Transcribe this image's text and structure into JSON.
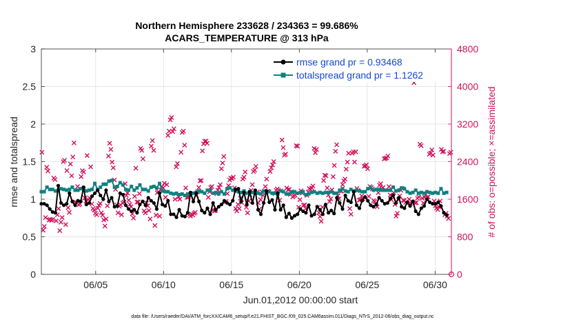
{
  "chart_data": {
    "type": "line",
    "title_line1": "Northern Hemisphere 233628 / 234363 = 99.686%",
    "title_line2": "ACARS_TEMPERATURE @ 313 hPa",
    "xlabel": "Jun.01,2012 00:00:00 start",
    "ylabel_left": "rmse and totalspread",
    "ylabel_right": "# of obs: o=possible; ×=assimilated",
    "xlim_days": [
      1,
      31.2
    ],
    "ylim_left": [
      0,
      3
    ],
    "ylim_right": [
      0,
      4800
    ],
    "x_ticks": [
      {
        "day": 5,
        "label": "06/05"
      },
      {
        "day": 10,
        "label": "06/10"
      },
      {
        "day": 15,
        "label": "06/15"
      },
      {
        "day": 20,
        "label": "06/20"
      },
      {
        "day": 25,
        "label": "06/25"
      },
      {
        "day": 30,
        "label": "06/30"
      }
    ],
    "y_ticks_left": [
      {
        "v": 0,
        "label": "0"
      },
      {
        "v": 0.5,
        "label": "0.5"
      },
      {
        "v": 1,
        "label": "1"
      },
      {
        "v": 1.5,
        "label": "1.5"
      },
      {
        "v": 2,
        "label": "2"
      },
      {
        "v": 2.5,
        "label": "2.5"
      },
      {
        "v": 3,
        "label": "3"
      }
    ],
    "y_ticks_right": [
      {
        "v": 0,
        "label": "0"
      },
      {
        "v": 800,
        "label": "800"
      },
      {
        "v": 1600,
        "label": "1600"
      },
      {
        "v": 2400,
        "label": "2400"
      },
      {
        "v": 3200,
        "label": "3200"
      },
      {
        "v": 4000,
        "label": "4000"
      },
      {
        "v": 4800,
        "label": "4800"
      }
    ],
    "legend_position": "top-right",
    "series": [
      {
        "name": "rmse",
        "legend": "rmse grand pr = 0.93468",
        "color": "#000000",
        "marker": "circle"
      },
      {
        "name": "totalspread",
        "legend": "totalspread grand pr = 1.1262",
        "color": "#108080",
        "marker": "square"
      },
      {
        "name": "obs_assimilated",
        "legend": "",
        "color": "#d0105a",
        "marker": "x"
      }
    ],
    "rmse_values": [
      0.94,
      0.94,
      0.92,
      0.87,
      0.83,
      0.82,
      1.18,
      0.95,
      0.92,
      0.94,
      1.08,
      0.97,
      0.92,
      0.98,
      0.97,
      1.16,
      0.93,
      0.95,
      1.04,
      1.08,
      1.12,
      1.05,
      1.0,
      1.12,
      0.97,
      1.02,
      0.9,
      0.91,
      1.08,
      1.06,
      0.92,
      0.87,
      0.84,
      0.86,
      0.82,
      0.93,
      0.97,
      0.92,
      1.02,
      0.98,
      0.95,
      0.87,
      1.08,
      0.93,
      0.91,
      0.98,
      0.8,
      0.8,
      0.76,
      0.86,
      0.78,
      0.77,
      0.82,
      1.09,
      0.97,
      1.08,
      0.97,
      0.85,
      0.82,
      0.88,
      0.8,
      0.95,
      0.86,
      0.9,
      0.93,
      0.98,
      0.95,
      0.93,
      0.98,
      1.13,
      1.14,
      0.97,
      1.09,
      0.93,
      1.1,
      0.95,
      1.12,
      0.86,
      0.8,
      0.95,
      1.11,
      0.96,
      0.99,
      0.86,
      1.08,
      0.86,
      0.92,
      0.76,
      0.81,
      0.75,
      0.78,
      0.8,
      0.87,
      0.84,
      0.82,
      0.92,
      0.78,
      0.8,
      0.9,
      0.86,
      0.8,
      0.93,
      0.82,
      0.85,
      0.81,
      1.02,
      0.95,
      0.87,
      1.05,
      0.98,
      0.96,
      1.1,
      0.92,
      0.88,
      0.98,
      1.03,
      0.98,
      0.92,
      0.9,
      0.93,
      1.02,
      0.98,
      0.94,
      0.95,
      1.01,
      1.05,
      0.95,
      1.02,
      0.9,
      0.88,
      0.96,
      0.91,
      0.97,
      0.84,
      0.8,
      0.88,
      0.91,
      1.0,
      0.96,
      0.94,
      0.94,
      0.96,
      0.91,
      0.82,
      0.79
    ],
    "spread_values": [
      1.1,
      1.1,
      1.16,
      1.13,
      1.13,
      1.11,
      1.12,
      1.14,
      1.13,
      1.12,
      1.13,
      1.16,
      1.12,
      1.12,
      1.14,
      1.15,
      1.11,
      1.12,
      1.13,
      1.21,
      1.13,
      1.16,
      1.2,
      1.2,
      1.24,
      1.25,
      1.16,
      1.17,
      1.22,
      1.19,
      1.13,
      1.12,
      1.17,
      1.12,
      1.15,
      1.19,
      1.13,
      1.13,
      1.11,
      1.16,
      1.17,
      1.15,
      1.21,
      1.11,
      1.1,
      1.1,
      1.08,
      1.07,
      1.08,
      1.06,
      1.07,
      1.05,
      1.07,
      1.06,
      1.08,
      1.09,
      1.11,
      1.1,
      1.08,
      1.12,
      1.12,
      1.08,
      1.09,
      1.07,
      1.1,
      1.07,
      1.14,
      1.15,
      1.12,
      1.11,
      1.1,
      1.09,
      1.11,
      1.08,
      1.1,
      1.09,
      1.1,
      1.08,
      1.07,
      1.11,
      1.09,
      1.1,
      1.08,
      1.08,
      1.07,
      1.11,
      1.1,
      1.07,
      1.07,
      1.1,
      1.1,
      1.08,
      1.09,
      1.1,
      1.06,
      1.07,
      1.09,
      1.1,
      1.08,
      1.09,
      1.08,
      1.09,
      1.09,
      1.1,
      1.08,
      1.08,
      1.12,
      1.14,
      1.11,
      1.1,
      1.13,
      1.11,
      1.12,
      1.11,
      1.1,
      1.1,
      1.14,
      1.15,
      1.12,
      1.13,
      1.13,
      1.12,
      1.12,
      1.12,
      1.12,
      1.16,
      1.11,
      1.12,
      1.15,
      1.14,
      1.1,
      1.08,
      1.09,
      1.12,
      1.08,
      1.09,
      1.08,
      1.1,
      1.09,
      1.08,
      1.09,
      1.08,
      1.14,
      1.08,
      1.09
    ],
    "obs_assimilated": [
      2600,
      940,
      1020,
      1210,
      2280,
      2200,
      1160,
      1170,
      1150,
      1170,
      2050,
      2020,
      1140,
      1270,
      1400,
      930,
      1110,
      1210,
      2400,
      2430,
      1060,
      2210,
      1420,
      1320,
      2350,
      2100,
      2500,
      2800,
      1540,
      1530,
      1870,
      1480,
      1500,
      2080,
      2210,
      2180,
      1630,
      1560,
      2530,
      1590,
      1630,
      2290,
      1500,
      1400,
      1370,
      1300,
      1270,
      1410,
      1470,
      1510,
      1310,
      1260,
      1160,
      1030,
      1180,
      1460,
      2520,
      2790,
      2660,
      2390,
      2270,
      2010,
      1810,
      1480,
      1310,
      1450,
      1480,
      1270,
      1520,
      1540,
      1930,
      1680,
      1730,
      1580,
      1490,
      1440,
      1290,
      1200,
      1660,
      2260,
      1540,
      1540,
      1720,
      2680,
      2640,
      2460,
      1350,
      1310,
      1520,
      1460,
      1360,
      1180,
      2730,
      2850,
      2640,
      1040,
      1260,
      1740,
      1760,
      1240,
      1800,
      1870,
      1840,
      1940,
      1640,
      1910,
      2960,
      3050,
      3290,
      3340,
      3040,
      3100,
      1600,
      2290,
      2360,
      1650,
      1600,
      2600,
      3020,
      3050,
      2750,
      1840,
      1640,
      1640,
      1270,
      1240,
      1280,
      1260,
      1300,
      1320,
      1680,
      1760,
      1850,
      1990,
      2000,
      2630,
      2780,
      2830,
      2840,
      2790,
      1640,
      1760,
      1850,
      1870,
      1370,
      1350,
      1360,
      1720,
      1790,
      1850,
      1910,
      2250,
      2370,
      2510,
      1540,
      1550,
      1720,
      1890,
      2010,
      2050,
      2040,
      2070,
      1840,
      1400,
      1350,
      1490,
      1400,
      1620,
      1530,
      2030,
      2070,
      2180,
      1430,
      1310,
      1560,
      1700,
      1790,
      1910,
      2190,
      2220,
      2300,
      1750,
      1520,
      1390,
      1590,
      1760,
      1680,
      1770,
      1870,
      2030,
      1770,
      1760,
      2190,
      2270,
      2330,
      2400,
      1720,
      1790,
      1820,
      1790,
      1580,
      1780,
      2860,
      2700,
      2540,
      2560,
      1840,
      1800,
      1810,
      1700,
      1760,
      1650,
      1670,
      1690,
      2740,
      2730,
      1430,
      1590,
      1780,
      1730,
      1470,
      1480,
      1400,
      1680,
      1750,
      1830,
      1810,
      1840,
      1880,
      2680,
      2590,
      2660,
      1420,
      1310,
      1230,
      1130,
      1430,
      2000,
      2110,
      2100,
      1840,
      1690,
      1550,
      1610,
      1800,
      2080,
      2320,
      2620,
      2760,
      1670,
      1610,
      1780,
      1770,
      1910,
      1990,
      2030,
      2240,
      2390,
      2580,
      1400,
      1280,
      2580,
      2610,
      2390,
      2610,
      1830,
      1790,
      1580,
      1590,
      1670,
      1610,
      2300,
      2310,
      2330,
      2250,
      1660,
      1870,
      1850,
      1820,
      1570,
      1550,
      1480,
      1440,
      1740,
      1900,
      1930,
      1820,
      1850,
      2460,
      2470,
      2480,
      2520,
      1870,
      1690,
      1590,
      1670,
      1740,
      1490,
      1240,
      1300,
      1590,
      1670,
      1790,
      1830,
      1580,
      1570,
      1530,
      4300,
      4270,
      1600,
      1520,
      1550,
      4170,
      4080,
      1520,
      1530,
      1620,
      1650,
      2770,
      2740,
      1620,
      1520,
      1640,
      1700,
      1640,
      1650,
      2560,
      2580,
      2650,
      2540,
      1560,
      1460,
      1410,
      1380,
      1440,
      1560,
      2660,
      2610,
      2620,
      1270,
      1300,
      1240,
      1190,
      2570,
      2600
    ],
    "footer": "data file: /Users/raeder/DAI/ATM_forcXX/CAM6_setup/f.e21.FHIST_BGC.f09_025.CAM6assim.011/Diags_NTrS_2012-06/obs_diag_output.nc"
  }
}
